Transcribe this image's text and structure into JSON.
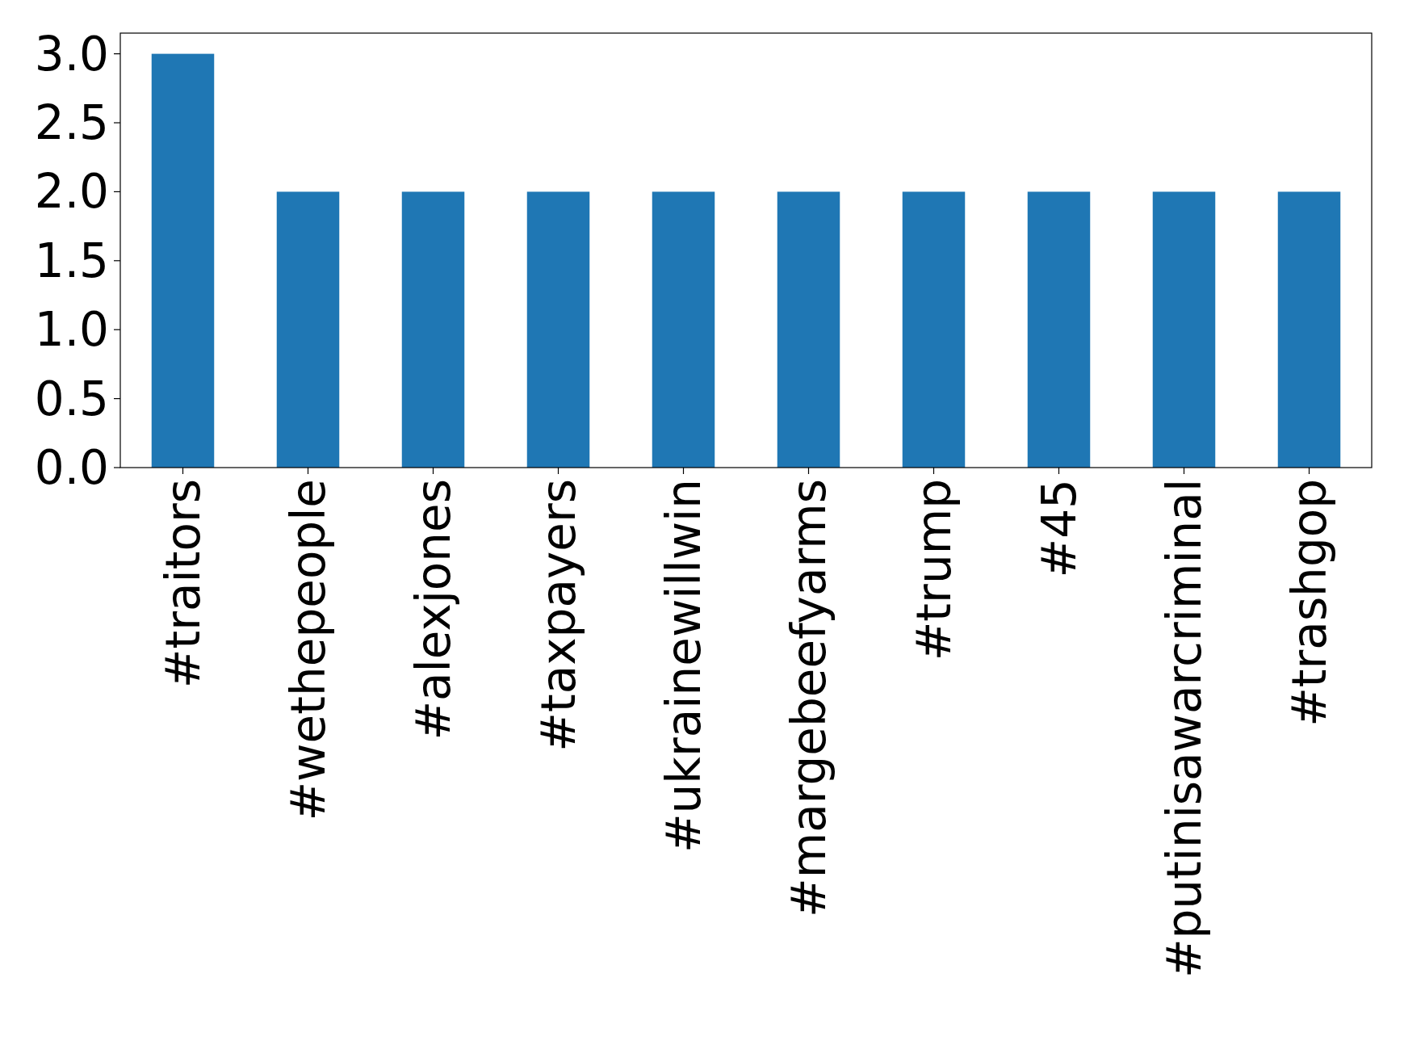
{
  "chart_data": {
    "type": "bar",
    "categories": [
      "#traitors",
      "#wethepeople",
      "#alexjones",
      "#taxpayers",
      "#ukrainewillwin",
      "#margebeefyarms",
      "#trump",
      "#45",
      "#putinisawarcriminal",
      "#trashgop"
    ],
    "values": [
      3,
      2,
      2,
      2,
      2,
      2,
      2,
      2,
      2,
      2
    ],
    "color": "#1f77b4",
    "ylim": [
      0,
      3.15
    ],
    "yticks": [
      {
        "value": 0,
        "label": "0.0"
      },
      {
        "value": 0.5,
        "label": "0.5"
      },
      {
        "value": 1,
        "label": "1.0"
      },
      {
        "value": 1.5,
        "label": "1.5"
      },
      {
        "value": 2,
        "label": "2.0"
      },
      {
        "value": 2.5,
        "label": "2.5"
      },
      {
        "value": 3,
        "label": "3.0"
      }
    ],
    "grid": false
  }
}
